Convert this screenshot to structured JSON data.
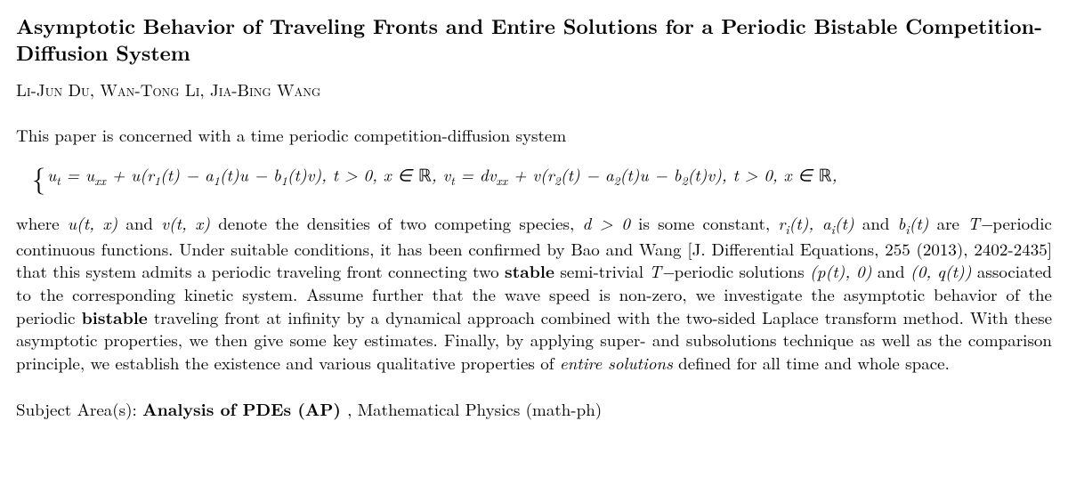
{
  "title": "Asymptotic Behavior of Traveling Fronts and Entire Solutions for a Periodic Bistable Competition-Diffusion System",
  "authors": "Li-Jun Du, Wan-Tong Li, Jia-Bing Wang",
  "intro": "This paper is concerned with a time periodic competition-diffusion system",
  "eq": {
    "ut": "u",
    "ut_sub": "t",
    "eq1": " = u",
    "uxx_sub": "xx",
    "mid1": " + u(r",
    "r1_sub": "1",
    "r1_t": "(t) − a",
    "a1_sub": "1",
    "a1_t": "(t)u − b",
    "b1_sub": "1",
    "b1_t": "(t)v),    t > 0,  x ∈ ",
    "R1": "ℝ",
    "comma1": ", v",
    "vt_sub": "t",
    "eq2": " = dv",
    "vxx_sub": "xx",
    "mid2": " + v(r",
    "r2_sub": "2",
    "r2_t": "(t) − a",
    "a2_sub": "2",
    "a2_t": "(t)u − b",
    "b2_sub": "2",
    "b2_t": "(t)v),    t > 0,  x ∈ ",
    "R2": "ℝ",
    "comma2": ","
  },
  "abs": {
    "p1a": "where ",
    "p1b": "u(t, x)",
    "p1c": " and ",
    "p1d": "v(t, x)",
    "p1e": " denote the densities of two competing species, ",
    "p1f": "d > 0",
    "p1g": " is some constant, ",
    "p1h": "r",
    "p1h_sub": "i",
    "p1i": "(t), a",
    "p1i_sub": "i",
    "p1j": "(t)",
    "p1k": " and ",
    "p1l": "b",
    "p1l_sub": "i",
    "p1m": "(t)",
    "p1n": " are ",
    "p1o": "T−",
    "p1p": "periodic continuous functions. Under suitable conditions, it has been confirmed by Bao and Wang [J. Differential Equations, 255 (2013), 2402-2435] that this system admits a periodic traveling front connecting two ",
    "p1q": "stable",
    "p1r": " semi-trivial ",
    "p1s": "T−",
    "p1t": "periodic solutions ",
    "p1u": "(p(t), 0)",
    "p1v": " and ",
    "p1w": "(0, q(t))",
    "p1x": " associated to the corresponding kinetic system. Assume further that the wave speed is non-zero, we investigate the asymptotic behavior of the periodic ",
    "p1y": "bistable",
    "p1z": " traveling front at infinity by a dynamical approach combined with the two-sided Laplace transform method. With these asymptotic properties, we then give some key estimates. Finally, by applying super- and subsolutions technique as well as the comparison principle, we establish the existence and various qualitative properties of ",
    "p1aa": "entire solutions",
    "p1ab": " defined for all time and whole space."
  },
  "subject_label": "Subject Area(s): ",
  "subject_bold": "Analysis of PDEs (AP) ",
  "subject_rest": ", Mathematical Physics (math-ph)"
}
